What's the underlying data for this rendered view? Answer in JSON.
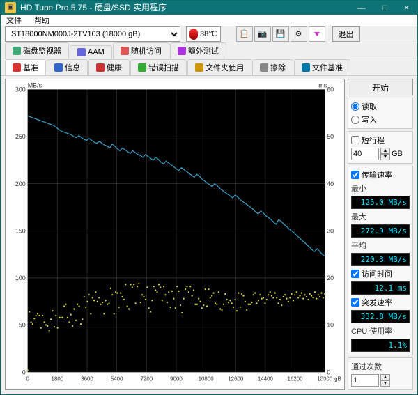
{
  "window": {
    "title": "HD Tune Pro 5.75 - 硬盘/SSD 实用程序",
    "min": "—",
    "max": "□",
    "close": "×"
  },
  "menu": {
    "file": "文件",
    "help": "帮助"
  },
  "toolbar": {
    "drive": "ST18000NM000J-2TV103 (18000 gB)",
    "temp": "38℃",
    "exit": "退出"
  },
  "tabs_top": [
    {
      "label": "磁盘监视器",
      "color": "#4a7"
    },
    {
      "label": "AAM",
      "color": "#66d"
    },
    {
      "label": "随机访问",
      "color": "#d55"
    },
    {
      "label": "额外测试",
      "color": "#a3d"
    }
  ],
  "tabs_bottom": [
    {
      "label": "基准",
      "color": "#d33",
      "active": true
    },
    {
      "label": "信息",
      "color": "#36c"
    },
    {
      "label": "健康",
      "color": "#c33"
    },
    {
      "label": "错误扫描",
      "color": "#3a3"
    },
    {
      "label": "文件夹使用",
      "color": "#c90"
    },
    {
      "label": "擦除",
      "color": "#888"
    },
    {
      "label": "文件基准",
      "color": "#07a"
    }
  ],
  "chart": {
    "bg": "#000000",
    "grid": "#4a4a4a",
    "line_color": "#3aa0c8",
    "scatter_color": "#d8d840",
    "y_left_label": "MB/s",
    "y_right_label": "ms",
    "x_label": "gB",
    "y_left_max": 300,
    "y_left_step": 50,
    "y_right_max": 60,
    "y_right_step": 10,
    "x_max": 18000,
    "x_step": 1800,
    "line_data": [
      272,
      271,
      270,
      269,
      268,
      267,
      266,
      265,
      264,
      263,
      262,
      260,
      258,
      256,
      255,
      254,
      253,
      252,
      250,
      249,
      251,
      249,
      247,
      246,
      248,
      246,
      244,
      243,
      245,
      243,
      241,
      240,
      238,
      242,
      240,
      237,
      235,
      238,
      236,
      234,
      232,
      235,
      233,
      231,
      230,
      228,
      231,
      229,
      227,
      225,
      228,
      226,
      223,
      221,
      224,
      222,
      220,
      218,
      216,
      214,
      217,
      215,
      213,
      211,
      209,
      207,
      210,
      208,
      205,
      203,
      201,
      199,
      197,
      200,
      198,
      195,
      193,
      191,
      189,
      187,
      185,
      188,
      186,
      183,
      181,
      179,
      177,
      175,
      173,
      170,
      168,
      171,
      169,
      166,
      164,
      162,
      159,
      157,
      162,
      160,
      157,
      155,
      152,
      150,
      148,
      145,
      143,
      140,
      138,
      135,
      133,
      130,
      128,
      131,
      128,
      125,
      123
    ],
    "scatter_y": [
      2,
      64,
      53,
      51,
      57,
      60,
      62,
      60,
      47,
      60,
      53,
      50,
      49,
      44,
      56,
      65,
      48,
      60,
      47,
      58,
      58,
      58,
      70,
      72,
      58,
      53,
      61,
      49,
      67,
      55,
      72,
      70,
      51,
      56,
      80,
      69,
      75,
      82,
      62,
      79,
      76,
      85,
      75,
      79,
      72,
      74,
      62,
      76,
      72,
      73,
      89,
      82,
      62,
      85,
      84,
      69,
      84,
      80,
      77,
      93,
      70,
      67,
      93,
      90,
      93,
      73,
      91,
      94,
      74,
      82,
      80,
      77,
      90,
      68,
      64,
      76,
      91,
      87,
      85,
      93,
      90,
      76,
      91,
      82,
      74,
      85,
      69,
      86,
      78,
      68,
      91,
      86,
      71,
      63,
      78,
      88,
      91,
      85,
      91,
      81,
      87,
      72,
      72,
      78,
      75,
      68,
      71,
      88,
      70,
      88,
      79,
      81,
      84,
      73,
      72,
      85,
      67,
      66,
      72,
      83,
      77,
      74,
      76,
      73,
      69,
      77,
      65,
      84,
      69,
      83,
      81,
      75,
      66,
      72,
      72,
      74,
      82,
      84,
      73,
      76,
      82,
      78,
      79,
      73,
      77,
      82,
      85,
      81,
      79,
      84,
      79,
      73,
      77,
      71,
      80,
      82,
      78,
      75,
      79,
      83,
      76,
      82,
      85,
      79,
      81,
      84,
      78,
      82,
      80,
      77,
      83,
      81,
      79,
      85,
      78,
      82,
      80,
      84,
      79,
      83
    ]
  },
  "side": {
    "start": "开始",
    "read": "读取",
    "write": "写入",
    "short_stroke": "短行程",
    "short_val": "40",
    "gb": "GB",
    "xfer": "传输速率",
    "min_l": "最小",
    "min_v": "125.0 MB/s",
    "max_l": "最大",
    "max_v": "272.9 MB/s",
    "avg_l": "平均",
    "avg_v": "220.3 MB/s",
    "access_l": "访问时间",
    "access_v": "12.1 ms",
    "burst_l": "突发速率",
    "burst_v": "332.8 MB/s",
    "cpu_l": "CPU 使用率",
    "cpu_v": "1.1%",
    "passes_l": "通过次数",
    "passes_v": "1"
  },
  "watermark": "ZOL",
  "watermark_sub": "中关村在线"
}
